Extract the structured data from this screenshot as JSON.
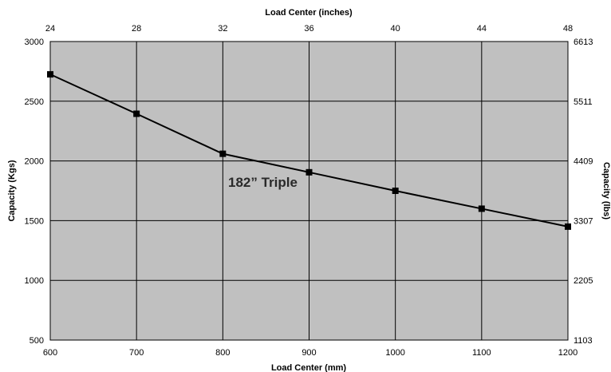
{
  "chart_data": {
    "type": "line",
    "series": [
      {
        "x": [
          600,
          700,
          800,
          900,
          1000,
          1100,
          1200
        ],
        "values": [
          2725,
          2395,
          2060,
          1905,
          1750,
          1600,
          1450
        ]
      }
    ],
    "xlabel": "Load Center (mm)",
    "x2label": "Load Center (inches)",
    "ylabel": "Capacity (Kgs)",
    "y2label": "Capacity (lbs)",
    "xlim": [
      600,
      1200
    ],
    "ylim": [
      500,
      3000
    ],
    "x_ticks": [
      "600",
      "700",
      "800",
      "900",
      "1000",
      "1100",
      "1200"
    ],
    "x2_ticks": [
      "24",
      "28",
      "32",
      "36",
      "40",
      "44",
      "48"
    ],
    "y_ticks": [
      "500",
      "1000",
      "1500",
      "2000",
      "2500",
      "3000"
    ],
    "y2_ticks": [
      "1103",
      "2205",
      "3307",
      "4409",
      "5511",
      "6613"
    ],
    "annotation": "182” Triple",
    "grid": true,
    "legend": false,
    "colors": {
      "plot_bg": "#c0c0c0",
      "line": "#000000",
      "marker": "#000000",
      "grid": "#000000"
    }
  }
}
